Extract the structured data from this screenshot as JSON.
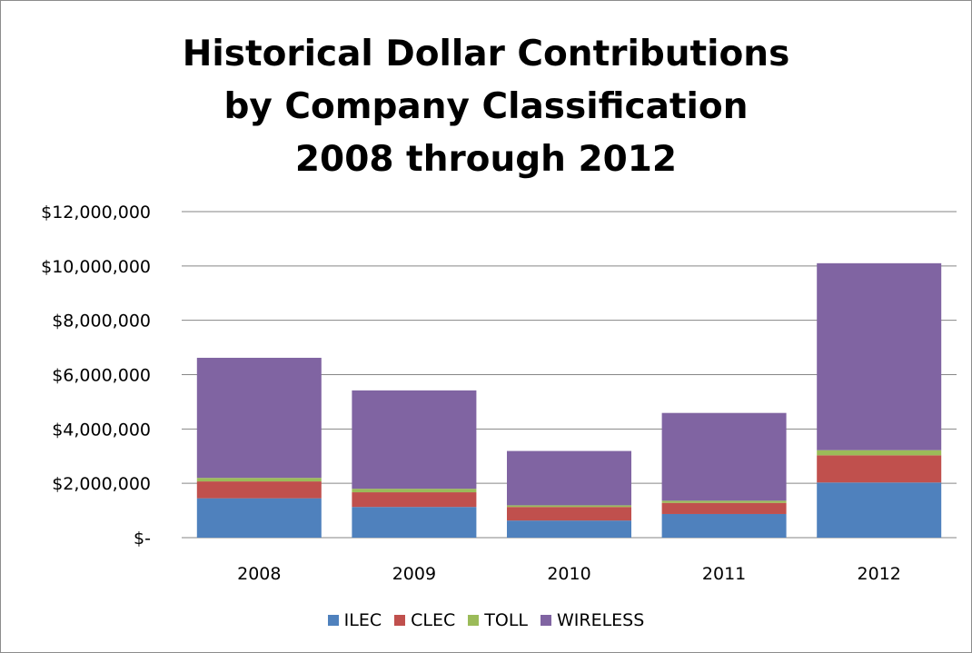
{
  "chart_data": {
    "type": "bar",
    "stacked": true,
    "title": [
      "Historical Dollar Contributions",
      "by Company Classification",
      "2008 through 2012"
    ],
    "xlabel": "",
    "ylabel": "",
    "categories": [
      "2008",
      "2009",
      "2010",
      "2011",
      "2012"
    ],
    "ylim": [
      0,
      12000000
    ],
    "yticks": [
      0,
      2000000,
      4000000,
      6000000,
      8000000,
      10000000,
      12000000
    ],
    "ytick_labels": [
      "$-",
      "$2,000,000",
      "$4,000,000",
      "$6,000,000",
      "$8,000,000",
      "$10,000,000",
      "$12,000,000"
    ],
    "grid": true,
    "legend_position": "bottom",
    "series": [
      {
        "name": "ILEC",
        "color": "#4f81bd",
        "values": [
          1450000,
          1130000,
          630000,
          870000,
          2030000
        ]
      },
      {
        "name": "CLEC",
        "color": "#c0504d",
        "values": [
          620000,
          540000,
          500000,
          410000,
          1000000
        ]
      },
      {
        "name": "TOLL",
        "color": "#9bbb59",
        "values": [
          130000,
          130000,
          60000,
          80000,
          190000
        ]
      },
      {
        "name": "WIRELESS",
        "color": "#8064a2",
        "values": [
          4420000,
          3620000,
          2000000,
          3230000,
          6880000
        ]
      }
    ]
  }
}
